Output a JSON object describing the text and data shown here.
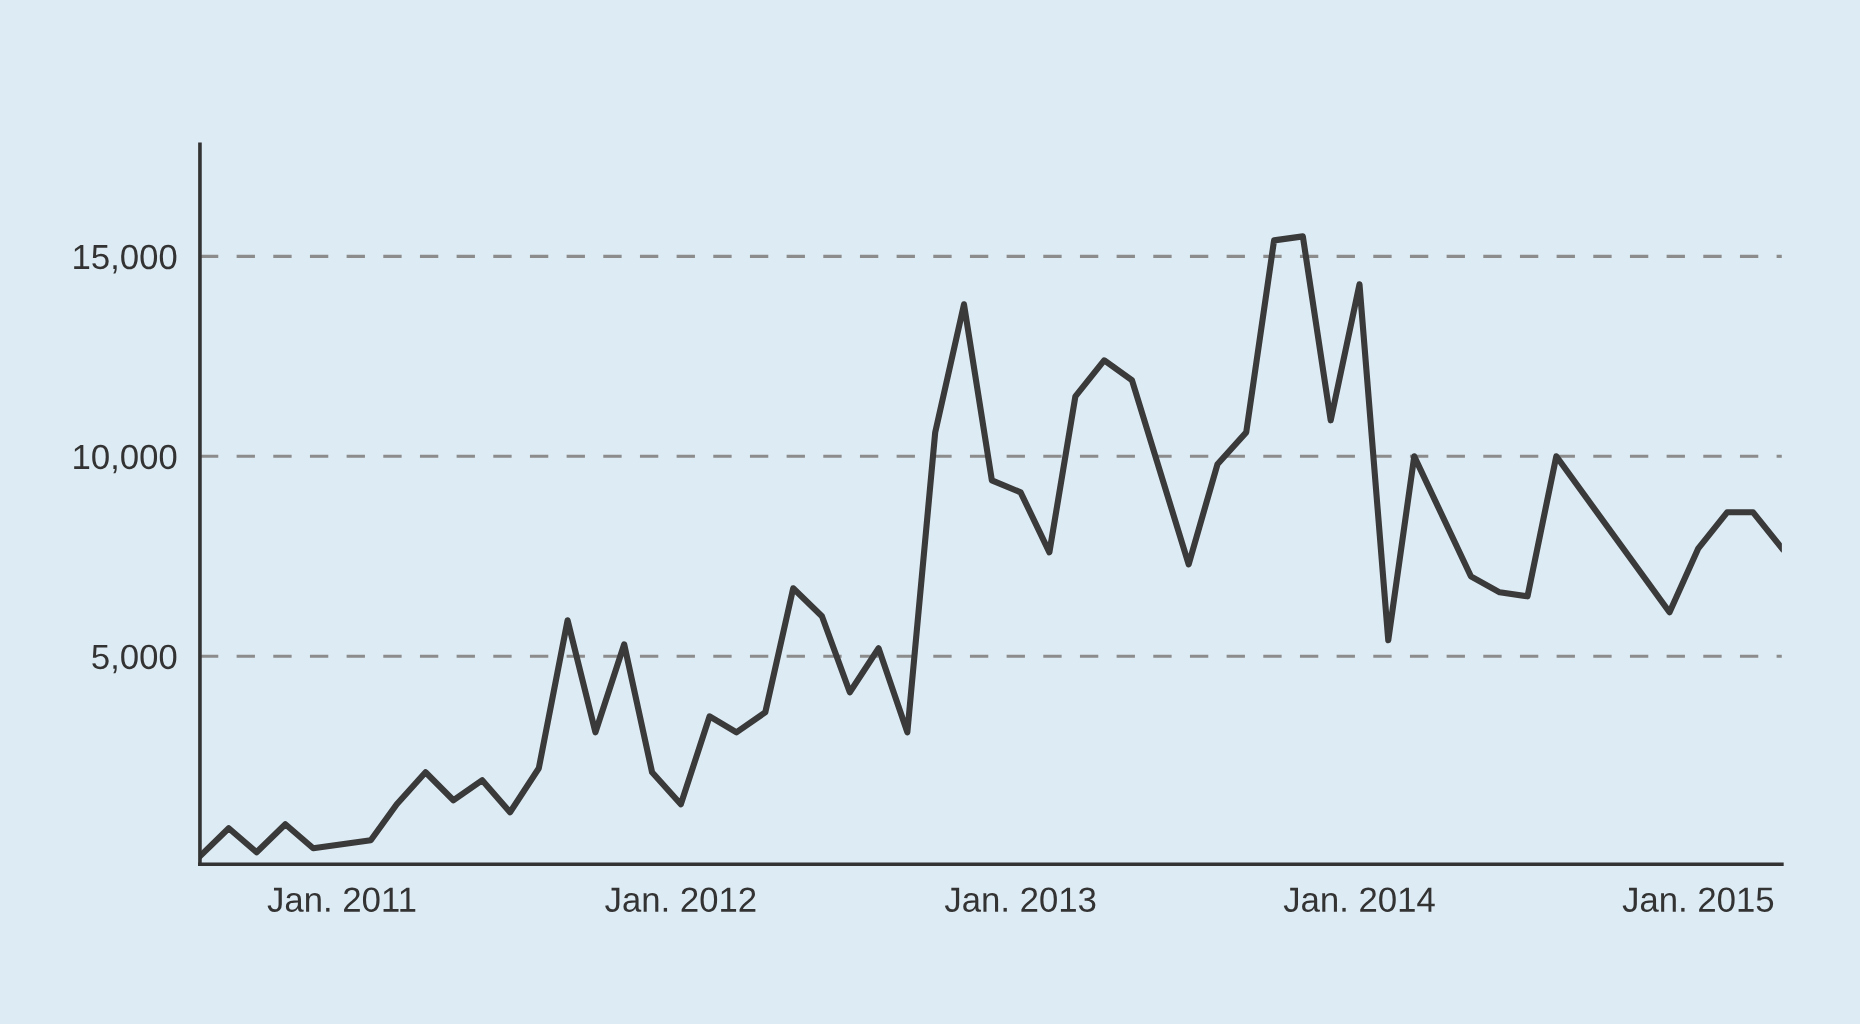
{
  "chart_data": {
    "type": "line",
    "x": [
      "2010-08",
      "2010-09",
      "2010-10",
      "2010-11",
      "2010-12",
      "2011-02",
      "2011-03",
      "2011-04",
      "2011-05",
      "2011-06",
      "2011-07",
      "2011-08",
      "2011-09",
      "2011-10",
      "2011-11",
      "2011-12",
      "2012-01",
      "2012-02",
      "2012-03",
      "2012-04",
      "2012-05",
      "2012-06",
      "2012-07",
      "2012-08",
      "2012-09",
      "2012-10",
      "2012-11",
      "2012-12",
      "2013-01",
      "2013-02",
      "2013-03",
      "2013-04",
      "2013-05",
      "2013-07",
      "2013-08",
      "2013-09",
      "2013-10",
      "2013-11",
      "2013-12",
      "2014-01",
      "2014-02",
      "2014-03",
      "2014-05",
      "2014-06",
      "2014-07",
      "2014-08",
      "2014-12",
      "2015-01",
      "2015-02",
      "2015-03",
      "2015-04"
    ],
    "series": [
      {
        "color": "#3a3a3a",
        "values": [
          0,
          700,
          100,
          800,
          200,
          400,
          1300,
          2100,
          1400,
          1900,
          1100,
          2200,
          5900,
          3100,
          5300,
          2100,
          1300,
          3500,
          3100,
          3600,
          6700,
          6000,
          4100,
          5200,
          3100,
          10600,
          13800,
          9400,
          9100,
          7600,
          11500,
          12400,
          11900,
          7300,
          9800,
          10600,
          15400,
          15500,
          10900,
          14300,
          5400,
          10000,
          7000,
          6600,
          6500,
          10000,
          6100,
          7700,
          8600,
          8600,
          7700
        ]
      }
    ],
    "xlim": [
      "2010-08",
      "2015-04"
    ],
    "xticks": [
      {
        "value": "2011-01",
        "label": "Jan. 2011"
      },
      {
        "value": "2012-01",
        "label": "Jan. 2012"
      },
      {
        "value": "2013-01",
        "label": "Jan. 2013"
      },
      {
        "value": "2014-01",
        "label": "Jan. 2014"
      },
      {
        "value": "2015-01",
        "label": "Jan. 2015"
      }
    ],
    "ylim": [
      -200,
      17800
    ],
    "yticks": [
      {
        "value": 5000,
        "label": "5,000"
      },
      {
        "value": 10000,
        "label": "10,000"
      },
      {
        "value": 15000,
        "label": "15,000"
      }
    ],
    "grid": "y",
    "legend": false,
    "marker": "none",
    "line_style": "solid"
  }
}
